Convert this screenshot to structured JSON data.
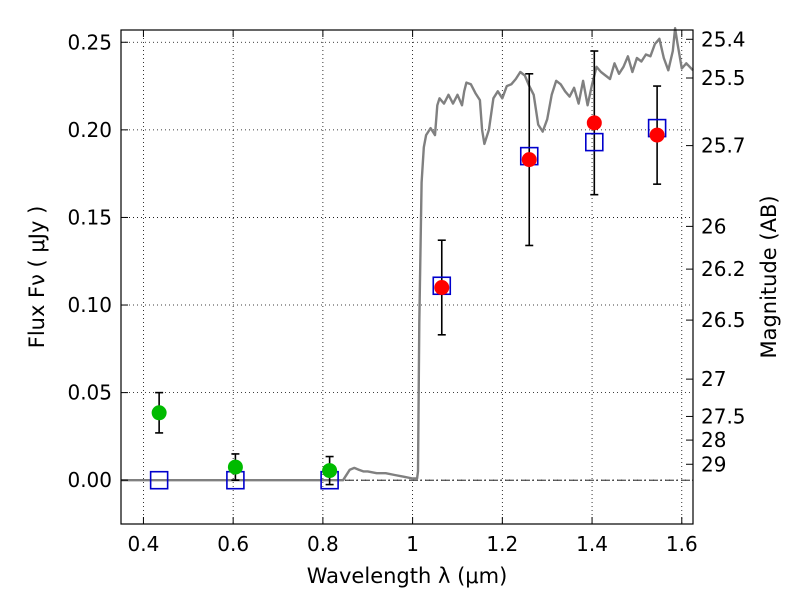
{
  "chart_data": {
    "type": "scatter",
    "xlabel": "Wavelength  λ (μm)",
    "ylabel": "Flux  Fν  ( μJy )",
    "ylabel_right": "Magnitude (AB)",
    "xlim": [
      0.35,
      1.625
    ],
    "ylim": [
      -0.025,
      0.257
    ],
    "x_ticks": [
      0.4,
      0.6,
      0.8,
      1.0,
      1.2,
      1.4,
      1.6
    ],
    "x_tick_labels": [
      "0.4",
      "0.6",
      "0.8",
      "1",
      "1.2",
      "1.4",
      "1.6"
    ],
    "y_ticks": [
      0.0,
      0.05,
      0.1,
      0.15,
      0.2,
      0.25
    ],
    "y_tick_labels": [
      "0.00",
      "0.05",
      "0.10",
      "0.15",
      "0.20",
      "0.25"
    ],
    "right_ticks": [
      {
        "label": "25.4",
        "flux": 0.2517
      },
      {
        "label": "25.5",
        "flux": 0.2296
      },
      {
        "label": "25.7",
        "flux": 0.191
      },
      {
        "label": "26",
        "flux": 0.1449
      },
      {
        "label": "26.2",
        "flux": 0.1205
      },
      {
        "label": "26.5",
        "flux": 0.0914
      },
      {
        "label": "27",
        "flux": 0.0577
      },
      {
        "label": "27.5",
        "flux": 0.0364
      },
      {
        "label": "28",
        "flux": 0.0229
      },
      {
        "label": "29",
        "flux": 0.0091
      }
    ],
    "grid": true,
    "grid_style": "dotted",
    "zero_line": true,
    "colors": {
      "spectrum": "#808080",
      "detected": "#ff0000",
      "non_detected": "#00bb00",
      "model": "#0000cc",
      "errorbar": "#000000"
    },
    "series": [
      {
        "kind": "line",
        "points": [
          [
            0.35,
            0.0
          ],
          [
            0.845,
            0.0
          ],
          [
            0.85,
            0.002
          ],
          [
            0.86,
            0.006
          ],
          [
            0.87,
            0.007
          ],
          [
            0.88,
            0.006
          ],
          [
            0.89,
            0.005
          ],
          [
            0.9,
            0.005
          ],
          [
            0.92,
            0.004
          ],
          [
            0.94,
            0.004
          ],
          [
            0.96,
            0.003
          ],
          [
            0.98,
            0.002
          ],
          [
            1.0,
            0.001
          ],
          [
            1.01,
            0.001
          ],
          [
            1.012,
            0.005
          ],
          [
            1.015,
            0.09
          ],
          [
            1.02,
            0.17
          ],
          [
            1.025,
            0.19
          ],
          [
            1.03,
            0.197
          ],
          [
            1.04,
            0.201
          ],
          [
            1.05,
            0.197
          ],
          [
            1.055,
            0.214
          ],
          [
            1.06,
            0.218
          ],
          [
            1.07,
            0.215
          ],
          [
            1.08,
            0.22
          ],
          [
            1.09,
            0.215
          ],
          [
            1.1,
            0.22
          ],
          [
            1.11,
            0.214
          ],
          [
            1.115,
            0.222
          ],
          [
            1.12,
            0.227
          ],
          [
            1.13,
            0.226
          ],
          [
            1.14,
            0.221
          ],
          [
            1.15,
            0.217
          ],
          [
            1.155,
            0.2
          ],
          [
            1.16,
            0.192
          ],
          [
            1.17,
            0.2
          ],
          [
            1.18,
            0.218
          ],
          [
            1.19,
            0.222
          ],
          [
            1.2,
            0.218
          ],
          [
            1.21,
            0.225
          ],
          [
            1.22,
            0.226
          ],
          [
            1.23,
            0.229
          ],
          [
            1.24,
            0.233
          ],
          [
            1.25,
            0.231
          ],
          [
            1.26,
            0.225
          ],
          [
            1.27,
            0.22
          ],
          [
            1.28,
            0.203
          ],
          [
            1.29,
            0.199
          ],
          [
            1.3,
            0.206
          ],
          [
            1.31,
            0.22
          ],
          [
            1.32,
            0.228
          ],
          [
            1.33,
            0.226
          ],
          [
            1.34,
            0.222
          ],
          [
            1.35,
            0.219
          ],
          [
            1.36,
            0.224
          ],
          [
            1.37,
            0.215
          ],
          [
            1.38,
            0.228
          ],
          [
            1.39,
            0.214
          ],
          [
            1.4,
            0.226
          ],
          [
            1.41,
            0.236
          ],
          [
            1.42,
            0.233
          ],
          [
            1.43,
            0.231
          ],
          [
            1.44,
            0.229
          ],
          [
            1.45,
            0.238
          ],
          [
            1.46,
            0.232
          ],
          [
            1.47,
            0.236
          ],
          [
            1.48,
            0.242
          ],
          [
            1.49,
            0.233
          ],
          [
            1.5,
            0.241
          ],
          [
            1.51,
            0.239
          ],
          [
            1.52,
            0.243
          ],
          [
            1.53,
            0.242
          ],
          [
            1.54,
            0.249
          ],
          [
            1.55,
            0.252
          ],
          [
            1.56,
            0.241
          ],
          [
            1.57,
            0.234
          ],
          [
            1.58,
            0.245
          ],
          [
            1.585,
            0.258
          ],
          [
            1.59,
            0.25
          ],
          [
            1.6,
            0.235
          ],
          [
            1.61,
            0.238
          ],
          [
            1.625,
            0.234
          ]
        ]
      },
      {
        "kind": "errorbar",
        "color": "non_detected",
        "points": [
          {
            "x": 0.435,
            "y": 0.0385,
            "err_low": 0.0115,
            "err_high": 0.0115
          },
          {
            "x": 0.605,
            "y": 0.0075,
            "err_low": 0.0075,
            "err_high": 0.0075
          },
          {
            "x": 0.815,
            "y": 0.0055,
            "err_low": 0.008,
            "err_high": 0.008
          }
        ]
      },
      {
        "kind": "errorbar",
        "color": "detected",
        "points": [
          {
            "x": 1.065,
            "y": 0.11,
            "err_low": 0.027,
            "err_high": 0.027
          },
          {
            "x": 1.26,
            "y": 0.183,
            "err_low": 0.049,
            "err_high": 0.049
          },
          {
            "x": 1.405,
            "y": 0.204,
            "err_low": 0.041,
            "err_high": 0.041
          },
          {
            "x": 1.545,
            "y": 0.197,
            "err_low": 0.028,
            "err_high": 0.028
          }
        ]
      },
      {
        "kind": "open-square",
        "color": "model",
        "points": [
          [
            0.435,
            0.0
          ],
          [
            0.605,
            0.0
          ],
          [
            0.815,
            0.0
          ],
          [
            1.065,
            0.111
          ],
          [
            1.26,
            0.185
          ],
          [
            1.405,
            0.193
          ],
          [
            1.545,
            0.201
          ]
        ]
      }
    ]
  }
}
